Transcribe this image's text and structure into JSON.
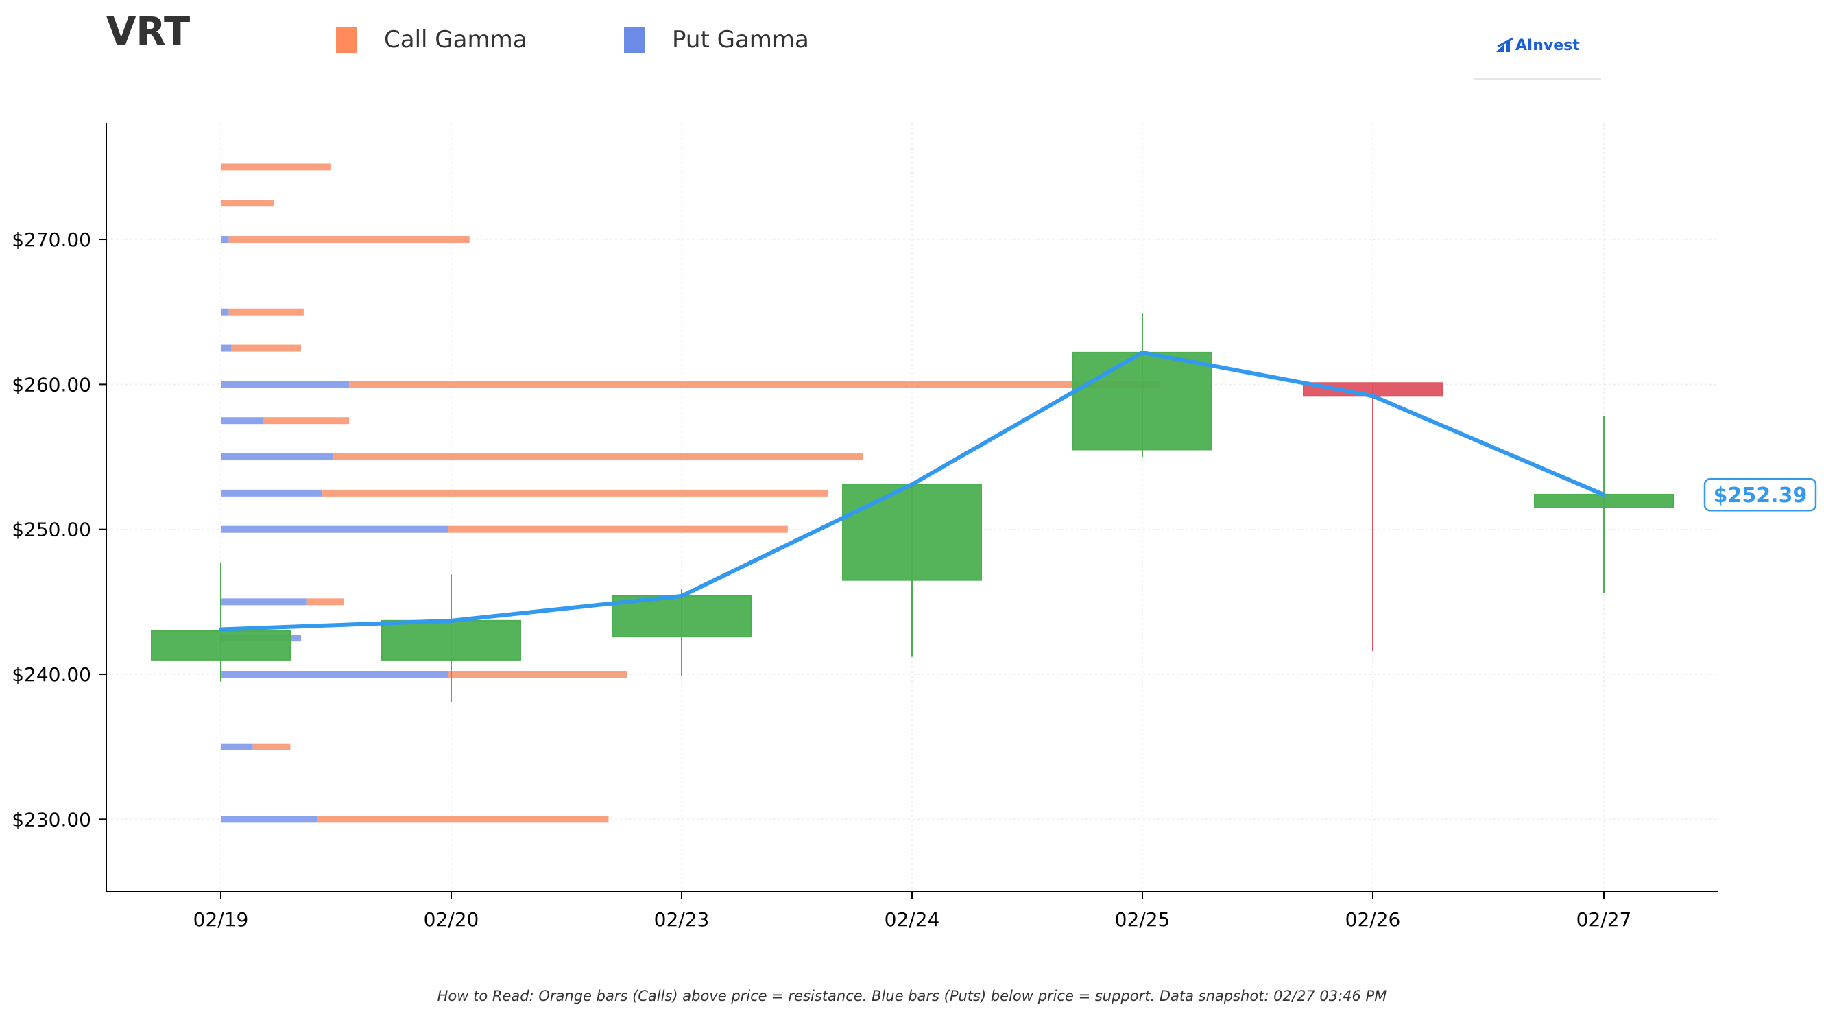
{
  "header": {
    "ticker": "VRT"
  },
  "legend": {
    "call": {
      "label": "Call Gamma",
      "color": "#ff8a5c"
    },
    "put": {
      "label": "Put Gamma",
      "color": "#6b8ce6"
    }
  },
  "logo": {
    "text": "AInvest",
    "color": "#1a5fd6"
  },
  "footer": {
    "note": "How to Read: Orange bars (Calls) above price = resistance. Blue bars (Puts) below price = support. Data snapshot: 02/27 03:46 PM"
  },
  "colors": {
    "up": "#4caf50",
    "down": "#e05260",
    "price_line": "#3399ee",
    "call_bar": "#f9a07e",
    "put_bar": "#8aa3ec"
  },
  "chart_data": {
    "type": "candlestick",
    "categories": [
      "02/19",
      "02/20",
      "02/23",
      "02/24",
      "02/25",
      "02/26",
      "02/27"
    ],
    "y_ticks": [
      "$230.00",
      "$240.00",
      "$250.00",
      "$260.00",
      "$270.00"
    ],
    "y_tick_values": [
      230,
      240,
      250,
      260,
      270
    ],
    "ylim": [
      225,
      278
    ],
    "grid": true,
    "candles": [
      {
        "date": "02/19",
        "open": 241.0,
        "high": 247.7,
        "low": 239.5,
        "close": 243.0
      },
      {
        "date": "02/20",
        "open": 241.0,
        "high": 246.9,
        "low": 238.1,
        "close": 243.7
      },
      {
        "date": "02/23",
        "open": 242.6,
        "high": 245.9,
        "low": 239.9,
        "close": 245.4
      },
      {
        "date": "02/24",
        "open": 246.5,
        "high": 253.1,
        "low": 241.2,
        "close": 253.1
      },
      {
        "date": "02/25",
        "open": 255.5,
        "high": 264.9,
        "low": 255.0,
        "close": 262.2
      },
      {
        "date": "02/26",
        "open": 260.1,
        "high": 260.1,
        "low": 241.6,
        "close": 259.2
      },
      {
        "date": "02/27",
        "open": 251.5,
        "high": 257.8,
        "low": 245.6,
        "close": 252.4
      }
    ],
    "price_line": [
      243.1,
      243.7,
      245.4,
      253.1,
      262.2,
      259.2,
      252.39
    ],
    "last_price_label": "$252.39",
    "gamma_units": "relative",
    "gamma_levels": [
      {
        "strike": 230.0,
        "put": 0.36,
        "call": 1.09
      },
      {
        "strike": 235.0,
        "put": 0.12,
        "call": 0.14
      },
      {
        "strike": 240.0,
        "put": 0.85,
        "call": 0.67
      },
      {
        "strike": 242.5,
        "put": 0.3,
        "call": 0.0
      },
      {
        "strike": 245.0,
        "put": 0.32,
        "call": 0.14
      },
      {
        "strike": 250.0,
        "put": 0.85,
        "call": 1.27
      },
      {
        "strike": 252.5,
        "put": 0.38,
        "call": 1.89
      },
      {
        "strike": 255.0,
        "put": 0.42,
        "call": 1.98
      },
      {
        "strike": 257.5,
        "put": 0.16,
        "call": 0.32
      },
      {
        "strike": 260.0,
        "put": 0.48,
        "call": 3.03
      },
      {
        "strike": 262.5,
        "put": 0.04,
        "call": 0.26
      },
      {
        "strike": 265.0,
        "put": 0.03,
        "call": 0.28
      },
      {
        "strike": 270.0,
        "put": 0.03,
        "call": 0.9
      },
      {
        "strike": 272.5,
        "put": 0.0,
        "call": 0.2
      },
      {
        "strike": 275.0,
        "put": 0.0,
        "call": 0.41
      }
    ]
  }
}
